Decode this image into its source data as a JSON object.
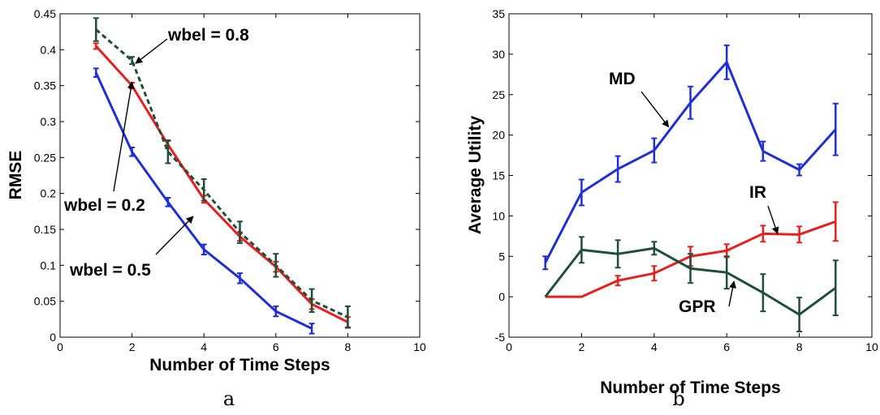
{
  "chart_data": [
    {
      "type": "line",
      "caption": "a",
      "xlabel": "Number of Time Steps",
      "ylabel": "RMSE",
      "xlim": [
        0,
        10
      ],
      "ylim": [
        0,
        0.45
      ],
      "xticks": [
        "0",
        "2",
        "4",
        "6",
        "8",
        "10"
      ],
      "yticks": [
        "0",
        "0.05",
        "0.1",
        "0.15",
        "0.2",
        "0.25",
        "0.3",
        "0.35",
        "0.4",
        "0.45"
      ],
      "grid": false,
      "series": [
        {
          "color": "#1f2fd8",
          "dashed": false,
          "x": [
            1,
            2,
            3,
            4,
            5,
            6,
            7
          ],
          "values": [
            0.368,
            0.258,
            0.188,
            0.122,
            0.082,
            0.036,
            0.012
          ],
          "err": [
            0.006,
            0.006,
            0.006,
            0.007,
            0.007,
            0.007,
            0.007
          ]
        },
        {
          "color": "#e8201d",
          "dashed": false,
          "x": [
            1,
            2,
            3,
            4,
            5,
            6,
            7,
            8
          ],
          "values": [
            0.405,
            0.35,
            0.268,
            0.192,
            0.14,
            0.098,
            0.046,
            0.021
          ],
          "err": [
            0.004,
            0.004,
            0.005,
            0.005,
            0.006,
            0.007,
            0.007,
            0.007
          ]
        },
        {
          "color": "#1f4f3a",
          "dashed": true,
          "x": [
            1,
            2,
            3,
            4,
            5,
            6,
            7,
            8
          ],
          "values": [
            0.428,
            0.385,
            0.258,
            0.205,
            0.146,
            0.1,
            0.051,
            0.028
          ],
          "err": [
            0.016,
            0.005,
            0.016,
            0.015,
            0.015,
            0.016,
            0.016,
            0.015
          ]
        }
      ],
      "annotations": [
        {
          "text": "wbel = 0.8",
          "arrow_to": [
            2.1,
            0.381
          ]
        },
        {
          "text": "wbel = 0.2",
          "arrow_to": [
            2.0,
            0.355
          ]
        },
        {
          "text": "wbel = 0.5",
          "arrow_to": [
            3.7,
            0.168
          ]
        }
      ]
    },
    {
      "type": "line",
      "caption": "b",
      "xlabel": "Number of Time Steps",
      "ylabel": "Average Utility",
      "xlim": [
        0,
        10
      ],
      "ylim": [
        -5,
        35
      ],
      "xticks": [
        "0",
        "2",
        "4",
        "6",
        "8",
        "10"
      ],
      "yticks": [
        "-5",
        "0",
        "5",
        "10",
        "15",
        "20",
        "25",
        "30",
        "35"
      ],
      "grid": false,
      "series": [
        {
          "name": "MD",
          "color": "#1f2fd8",
          "dashed": false,
          "x": [
            1,
            2,
            3,
            4,
            5,
            6,
            7,
            8,
            9
          ],
          "values": [
            4.2,
            12.9,
            15.8,
            18.1,
            24.0,
            29.0,
            18.0,
            15.7,
            20.7
          ],
          "err": [
            0.8,
            1.6,
            1.6,
            1.5,
            2.0,
            2.1,
            1.2,
            0.7,
            3.2
          ]
        },
        {
          "name": "IR",
          "color": "#e8201d",
          "dashed": false,
          "x": [
            1,
            2,
            3,
            4,
            5,
            6,
            7,
            8,
            9
          ],
          "values": [
            0,
            0,
            2.0,
            2.9,
            5.0,
            5.7,
            7.8,
            7.7,
            9.3
          ],
          "err": [
            0,
            0,
            0.6,
            0.9,
            1.2,
            0.8,
            1.0,
            1.0,
            2.4
          ]
        },
        {
          "name": "GPR",
          "color": "#1f4f3a",
          "dashed": false,
          "x": [
            1,
            2,
            3,
            4,
            5,
            6,
            7,
            8,
            9
          ],
          "values": [
            0,
            5.8,
            5.3,
            6.0,
            3.5,
            3.0,
            0.5,
            -2.2,
            1.1
          ],
          "err": [
            0,
            1.6,
            1.7,
            0.8,
            1.8,
            2.0,
            2.3,
            2.1,
            3.4
          ]
        }
      ],
      "annotations": [
        {
          "text": "MD",
          "arrow_to": [
            4.4,
            21.0
          ]
        },
        {
          "text": "IR",
          "arrow_to": [
            7.4,
            7.8
          ]
        },
        {
          "text": "GPR",
          "arrow_to": [
            6.2,
            1.9
          ]
        }
      ]
    }
  ]
}
